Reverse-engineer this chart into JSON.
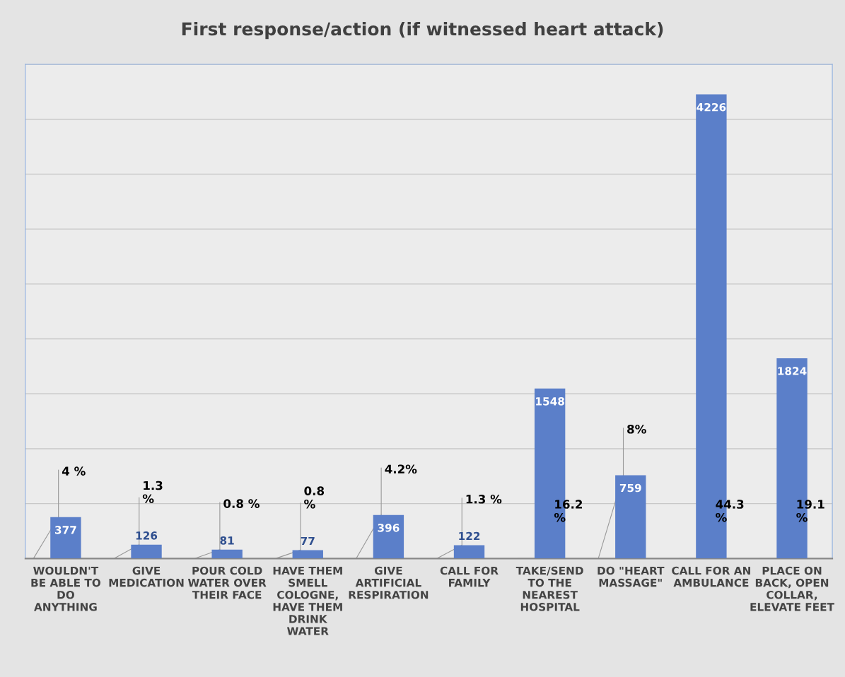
{
  "chart_data": {
    "type": "bar",
    "title": "First response/action (if witnessed heart attack)",
    "categories": [
      "WOULDN'T\nBE ABLE TO\nDO\nANYTHING",
      "GIVE\nMEDICATION",
      "POUR COLD\nWATER OVER\nTHEIR FACE",
      "HAVE THEM\nSMELL\nCOLOGNE,\nHAVE THEM\nDRINK\nWATER",
      "GIVE\nARTIFICIAL\nRESPIRATION",
      "CALL FOR\nFAMILY",
      "TAKE/SEND\nTO THE\nNEAREST\nHOSPITAL",
      "DO \"HEART\nMASSAGE\"",
      "CALL FOR AN\nAMBULANCE",
      "PLACE ON\nBACK, OPEN\nCOLLAR,\nELEVATE FEET"
    ],
    "values": [
      377,
      126,
      81,
      77,
      396,
      122,
      1548,
      759,
      4226,
      1824
    ],
    "color": "#5b7fc9",
    "data_labels": true,
    "ylim": [
      0,
      4500
    ],
    "yticks": [
      {
        "value": 0,
        "label": null
      },
      {
        "value": 500,
        "label": null
      },
      {
        "value": 1000,
        "label": null
      },
      {
        "value": 1500,
        "label": null
      },
      {
        "value": 2000,
        "label": null
      },
      {
        "value": 2500,
        "label": null
      },
      {
        "value": 3000,
        "label": null
      },
      {
        "value": 3500,
        "label": null
      },
      {
        "value": 4000,
        "label": null
      },
      {
        "value": 4500,
        "label": null
      }
    ],
    "tick_labels": "x",
    "grid": "y",
    "annotations": [
      "4 %",
      "1.3\n%",
      "0.8 %",
      "0.8\n%",
      "4.2%",
      "1.3 %",
      "16.2\n%",
      "8%",
      "44.3\n%",
      "19.1\n%"
    ]
  }
}
